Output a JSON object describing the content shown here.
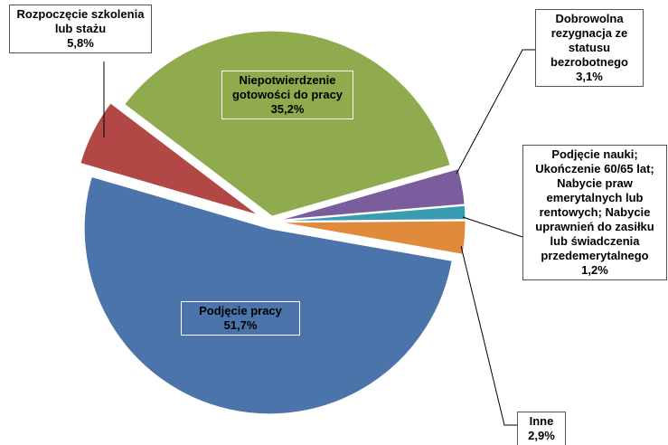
{
  "chart_data": {
    "type": "pie",
    "categories": [
      "Dobrowolna rezygnacja ze statusu bezrobotnego",
      "Podjęcie nauki; Ukończenie 60/65 lat; Nabycie praw emerytalnych lub rentowych; Nabycie uprawnień do zasiłku lub świadczenia przedemerytalnego",
      "Inne",
      "Podjęcie pracy",
      "Rozpoczęcie szkolenia lub stażu",
      "Niepotwierdzenie gotowości do pracy"
    ],
    "values": [
      3.1,
      1.2,
      2.9,
      51.7,
      5.8,
      35.2
    ],
    "value_labels": [
      "3,1%",
      "1,2%",
      "2,9%",
      "51,7%",
      "5,8%",
      "35,2%"
    ],
    "colors": [
      "#7b5c9c",
      "#3a9cb2",
      "#e08a3c",
      "#4a74aa",
      "#b24845",
      "#8fab4e"
    ]
  }
}
